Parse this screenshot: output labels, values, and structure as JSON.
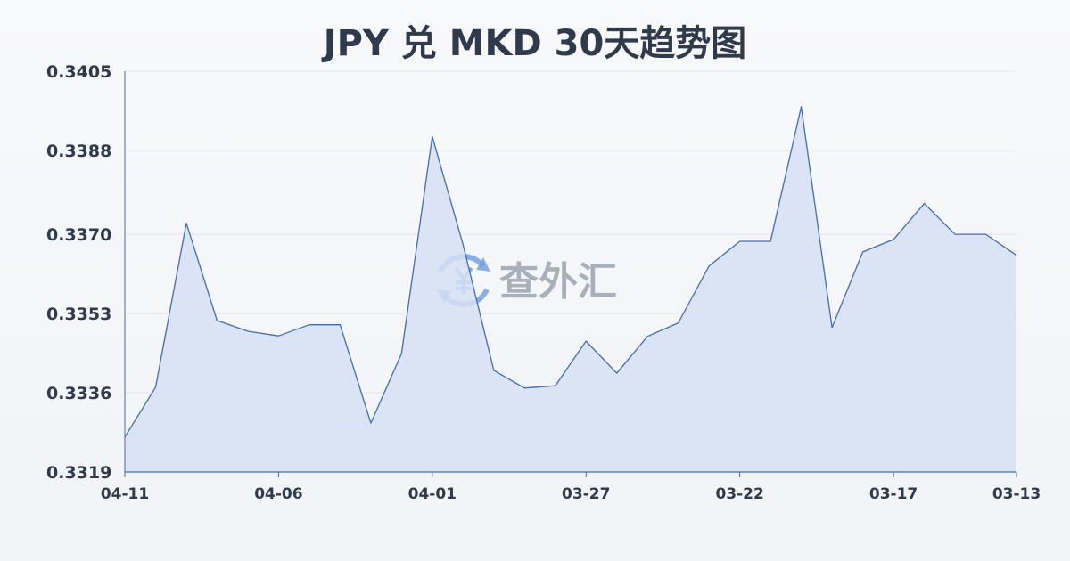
{
  "chart_data": {
    "type": "area",
    "title": "JPY 兑 MKD 30天趋势图",
    "xlabel": "",
    "ylabel": "",
    "x": [
      "04-11",
      "04-10",
      "04-09",
      "04-08",
      "04-07",
      "04-06",
      "04-05",
      "04-04",
      "04-03",
      "04-02",
      "04-01",
      "03-31",
      "03-30",
      "03-29",
      "03-28",
      "03-27",
      "03-26",
      "03-25",
      "03-24",
      "03-23",
      "03-22",
      "03-21",
      "03-20",
      "03-19",
      "03-18",
      "03-17",
      "03-16",
      "03-15",
      "03-14",
      "03-13"
    ],
    "x_tick_labels": [
      "04-11",
      "04-06",
      "04-01",
      "03-27",
      "03-22",
      "03-17",
      "03-13"
    ],
    "y_tick_labels": [
      "0.3405",
      "0.3388",
      "0.3370",
      "0.3353",
      "0.3336",
      "0.3319"
    ],
    "values": [
      0.33265,
      0.33372,
      0.33724,
      0.33515,
      0.33492,
      0.33482,
      0.33506,
      0.33506,
      0.33295,
      0.33444,
      0.3391,
      0.33678,
      0.33408,
      0.3337,
      0.33375,
      0.33471,
      0.33402,
      0.33481,
      0.3351,
      0.33632,
      0.33685,
      0.33685,
      0.33974,
      0.335,
      0.33662,
      0.33689,
      0.33766,
      0.337,
      0.337,
      0.33655
    ],
    "ylim": [
      0.3319,
      0.3405
    ],
    "grid": true,
    "colors": {
      "line": "#3e6db3",
      "fill": "#d6e0f5",
      "grid": "#e1e4ea",
      "axis": "#3e6db3"
    }
  },
  "watermark": {
    "text": "查外汇",
    "icon": "yen-exchange-icon",
    "icon_color": "#6f9de0"
  }
}
